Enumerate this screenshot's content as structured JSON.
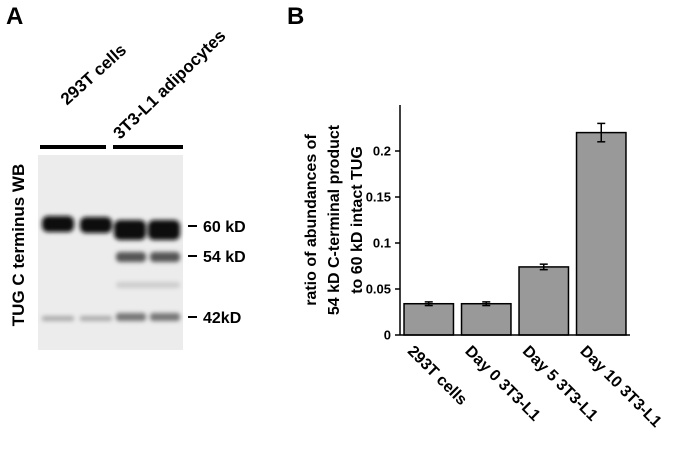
{
  "panel_a": {
    "label": "A",
    "lanes_left": "293T cells",
    "lanes_right": "3T3-L1 adipocytes",
    "y_label": "TUG C terminus WB",
    "markers": [
      "60 kD",
      "54 kD",
      "42kD"
    ]
  },
  "chart_data": {
    "type": "bar",
    "panel_label": "B",
    "ylabel": [
      "ratio of abundances of",
      "54 kD C-terminal product",
      "to 60 kD intact TUG"
    ],
    "categories": [
      "293T cells",
      "Day 0 3T3-L1",
      "Day 5 3T3-L1",
      "Day 10 3T3-L1"
    ],
    "values": [
      0.034,
      0.034,
      0.074,
      0.22
    ],
    "errors": [
      0.002,
      0.002,
      0.003,
      0.01
    ],
    "color": "#999999",
    "ylim": [
      0,
      0.25
    ],
    "yticks": [
      0,
      0.05,
      0.1,
      0.15,
      0.2
    ]
  }
}
